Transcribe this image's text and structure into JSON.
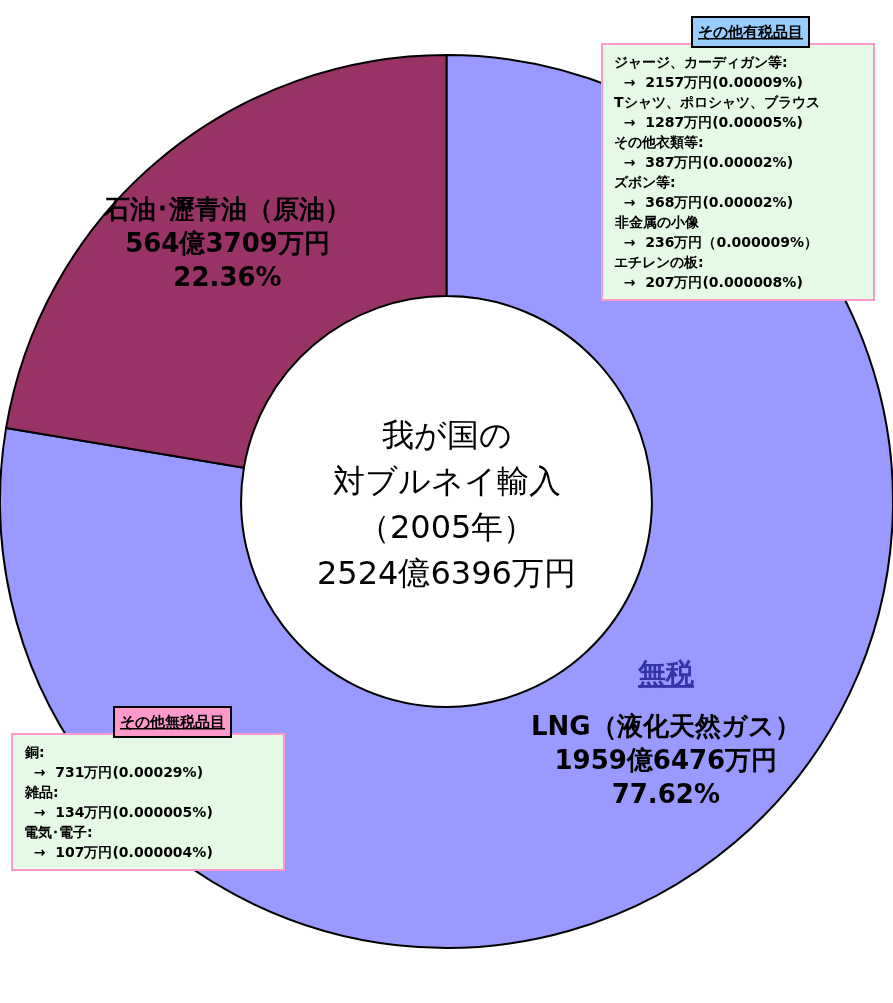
{
  "chart_data": {
    "type": "donut",
    "categories": [
      "LNG（液化天然ガス）",
      "石油･瀝青油（原油）"
    ],
    "values": [
      77.62,
      22.36
    ],
    "colors": [
      "#9999ff",
      "#993366"
    ],
    "value_labels": [
      "1959億6476万円\n77.62%",
      "564億3709万円\n22.36%"
    ],
    "annotations": [
      "我が国の",
      "対ブルネイ輸入",
      "（2005年）",
      "2524億6396万円",
      "無税",
      "その他有税品目",
      "ジャージ、カーディガン等:",
      "  →  2157万円(0.00009%)",
      "Tシャツ、ポロシャツ、ブラウス",
      "  →  1287万円(0.00005%)",
      "その他衣類等:",
      "  →  387万円(0.00002%)",
      "ズボン等:",
      "  →  368万円(0.00002%)",
      "非金属の小像",
      "  →  236万円（0.000009%）",
      "エチレンの板:",
      "  →  207万円(0.000008%)",
      "その他無税品目",
      "銅:",
      "  →  731万円(0.00029%)",
      "雑品:",
      "  →  134万円(0.000005%)",
      "電気･電子:",
      "  →  107万円(0.000004%)"
    ]
  }
}
